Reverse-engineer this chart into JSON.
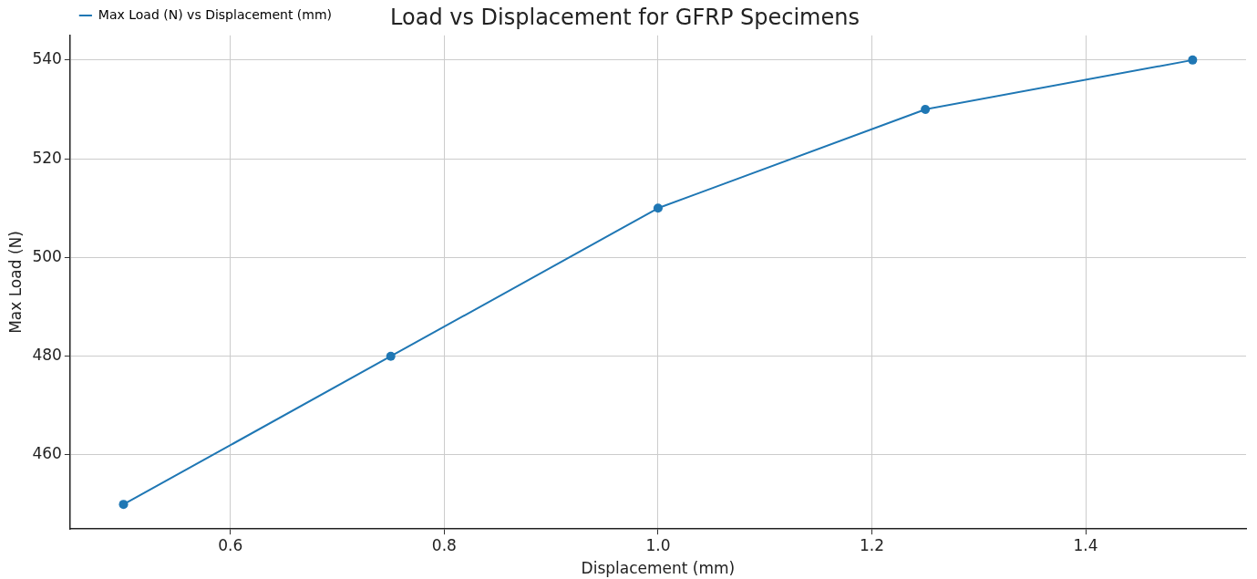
{
  "chart_data": {
    "type": "line",
    "title": "Load vs Displacement for GFRP Specimens",
    "xlabel": "Displacement (mm)",
    "ylabel": "Max Load (N)",
    "x": [
      0.5,
      0.75,
      1.0,
      1.25,
      1.5
    ],
    "series": [
      {
        "name": "Max Load (N) vs Displacement (mm)",
        "color": "#1f77b4",
        "values": [
          450,
          480,
          510,
          530,
          540
        ]
      }
    ],
    "xlim": [
      0.45,
      1.55
    ],
    "xticks": [
      {
        "value": 0.6,
        "label": "0.6"
      },
      {
        "value": 0.8,
        "label": "0.8"
      },
      {
        "value": 1.0,
        "label": "1.0"
      },
      {
        "value": 1.2,
        "label": "1.2"
      },
      {
        "value": 1.4,
        "label": "1.4"
      }
    ],
    "ylim": [
      445,
      545
    ],
    "yticks": [
      460,
      480,
      500,
      520,
      540
    ],
    "grid": true,
    "legend": "top left",
    "marker": "circle",
    "line_style": "solid"
  }
}
